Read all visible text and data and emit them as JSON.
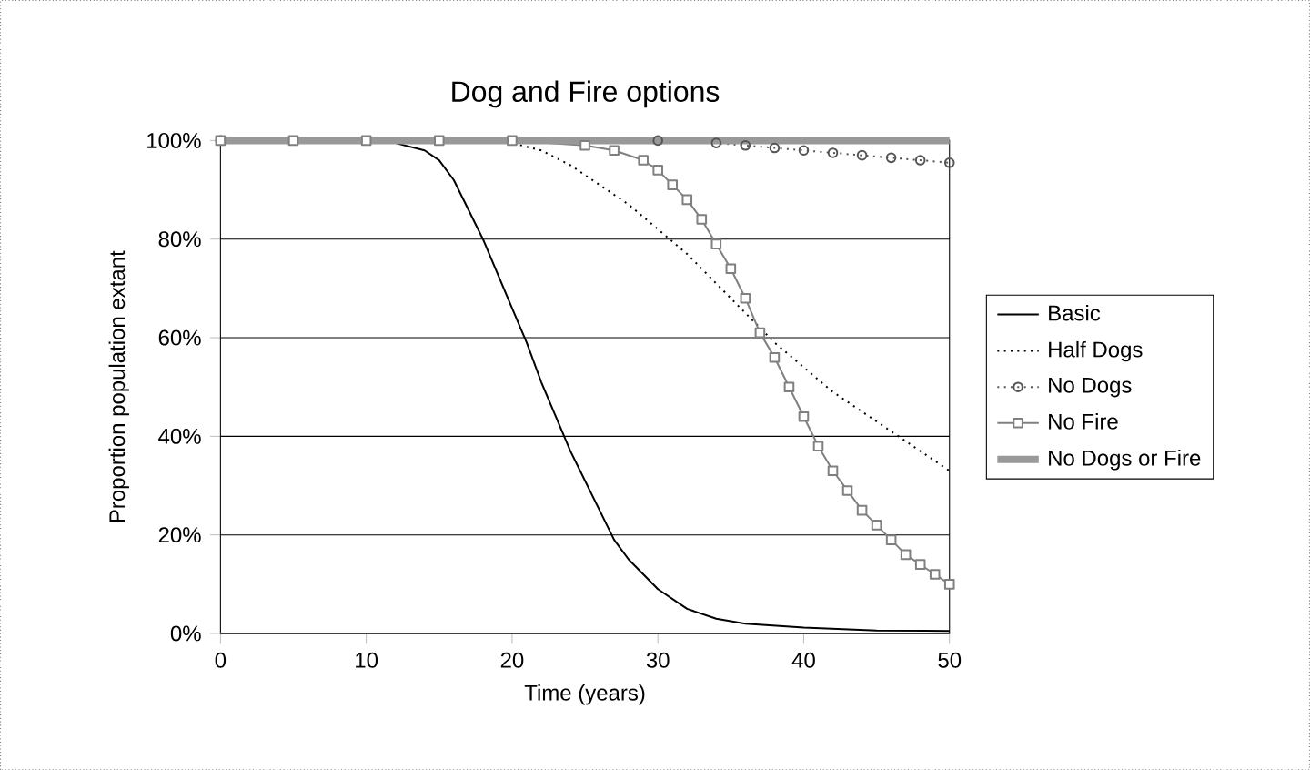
{
  "chart_data": {
    "type": "line",
    "title": "Dog and Fire options",
    "xlabel": "Time (years)",
    "ylabel": "Proportion population extant",
    "xlim": [
      0,
      50
    ],
    "xticks": [
      0,
      10,
      20,
      30,
      40,
      50
    ],
    "ylim": [
      0,
      100
    ],
    "yticks": [
      {
        "value": 0,
        "label": "0%"
      },
      {
        "value": 20,
        "label": "20%"
      },
      {
        "value": 40,
        "label": "40%"
      },
      {
        "value": 60,
        "label": "60%"
      },
      {
        "value": 80,
        "label": "80%"
      },
      {
        "value": 100,
        "label": "100%"
      }
    ],
    "grid": "y",
    "legend": "right",
    "series": [
      {
        "name": "Basic",
        "color": "#000000",
        "line_style": "solid",
        "marker": "none",
        "x": [
          0,
          10,
          12,
          14,
          15,
          16,
          17,
          18,
          19,
          20,
          21,
          22,
          23,
          24,
          25,
          26,
          27,
          28,
          29,
          30,
          32,
          34,
          36,
          40,
          45,
          50
        ],
        "values": [
          100,
          100,
          99.5,
          98,
          96,
          92,
          86,
          80,
          73,
          66,
          59,
          51,
          44,
          37,
          31,
          25,
          19,
          15,
          12,
          9,
          5,
          3,
          2,
          1.2,
          0.6,
          0.5
        ]
      },
      {
        "name": "Half Dogs",
        "color": "#000000",
        "line_style": "dotted",
        "marker": "none",
        "x": [
          0,
          20,
          22,
          24,
          26,
          28,
          30,
          32,
          34,
          36,
          38,
          40,
          42,
          44,
          46,
          48,
          50
        ],
        "values": [
          100,
          99.5,
          98,
          95,
          91,
          87,
          82,
          77,
          71,
          65,
          59,
          54,
          49,
          45,
          41,
          37,
          33
        ]
      },
      {
        "name": "No Dogs",
        "color": "#555555",
        "line_style": "dotted",
        "marker": "circle",
        "x": [
          0,
          30,
          34,
          36,
          38,
          40,
          42,
          44,
          46,
          48,
          50
        ],
        "values": [
          100,
          100,
          99.5,
          99,
          98.5,
          98,
          97.5,
          97,
          96.5,
          96,
          95.5
        ]
      },
      {
        "name": "No Fire",
        "color": "#808080",
        "line_style": "solid",
        "marker": "square",
        "x": [
          0,
          5,
          10,
          15,
          20,
          25,
          27,
          29,
          30,
          31,
          32,
          33,
          34,
          35,
          36,
          37,
          38,
          39,
          40,
          41,
          42,
          43,
          44,
          45,
          46,
          47,
          48,
          49,
          50
        ],
        "values": [
          100,
          100,
          100,
          100,
          100,
          99,
          98,
          96,
          94,
          91,
          88,
          84,
          79,
          74,
          68,
          61,
          56,
          50,
          44,
          38,
          33,
          29,
          25,
          22,
          19,
          16,
          14,
          12,
          10
        ]
      },
      {
        "name": "No Dogs or Fire",
        "color": "#999999",
        "line_style": "solid",
        "marker": "none",
        "x": [
          0,
          50
        ],
        "values": [
          100,
          100
        ]
      }
    ]
  }
}
